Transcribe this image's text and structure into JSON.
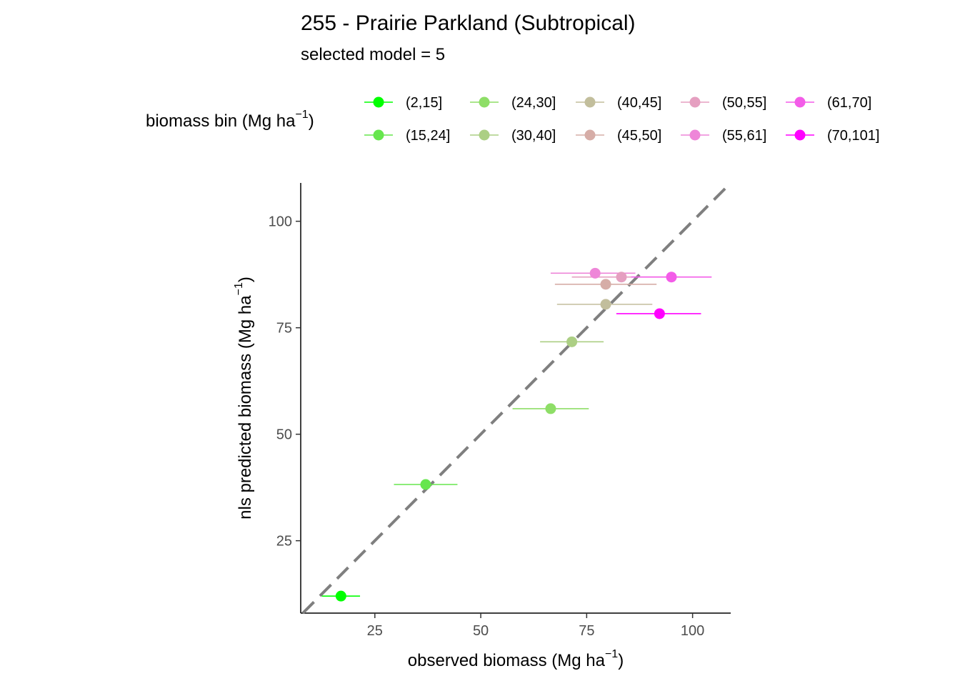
{
  "chart_data": {
    "type": "scatter",
    "title": "255 -  Prairie Parkland (Subtropical)",
    "subtitle": "selected model = 5",
    "legend": {
      "title_main": "biomass bin (Mg ha",
      "title_sup": "−1",
      "title_end": ")",
      "position": "top",
      "entries": [
        {
          "label": "(2,15]",
          "color": "#00FF00"
        },
        {
          "label": "(15,24]",
          "color": "#66E64D"
        },
        {
          "label": "(24,30]",
          "color": "#8EDE67"
        },
        {
          "label": "(30,40]",
          "color": "#ACCF84"
        },
        {
          "label": "(40,45]",
          "color": "#C2BE9C"
        },
        {
          "label": "(45,50]",
          "color": "#D6ADA7"
        },
        {
          "label": "(50,55]",
          "color": "#E59FC0"
        },
        {
          "label": "(55,61]",
          "color": "#EE86D8"
        },
        {
          "label": "(61,70]",
          "color": "#F35CE8"
        },
        {
          "label": "(70,101]",
          "color": "#FF00FF"
        }
      ]
    },
    "xlabel": {
      "main": "observed biomass (Mg ha",
      "sup": "−1",
      "end": ")"
    },
    "ylabel": {
      "main": "nls predicted biomass (Mg ha",
      "sup": "−1",
      "end": ")"
    },
    "xlim": [
      7.5,
      109
    ],
    "ylim": [
      8,
      109
    ],
    "xticks": [
      25,
      50,
      75,
      100
    ],
    "yticks": [
      25,
      50,
      75,
      100
    ],
    "grid": false,
    "reference_line": {
      "type": "y=x",
      "style": "dashed",
      "color": "#7F7F7F"
    },
    "points": [
      {
        "bin": "(2,15]",
        "x": 17,
        "y": 12,
        "xmin": 12.5,
        "xmax": 21.5
      },
      {
        "bin": "(15,24]",
        "x": 37,
        "y": 38.2,
        "xmin": 29.5,
        "xmax": 44.5
      },
      {
        "bin": "(24,30]",
        "x": 66.5,
        "y": 56,
        "xmin": 57.5,
        "xmax": 75.5
      },
      {
        "bin": "(30,40]",
        "x": 71.5,
        "y": 71.7,
        "xmin": 64,
        "xmax": 79
      },
      {
        "bin": "(40,45]",
        "x": 79.5,
        "y": 80.5,
        "xmin": 68,
        "xmax": 90.5
      },
      {
        "bin": "(45,50]",
        "x": 79.5,
        "y": 85.2,
        "xmin": 67.5,
        "xmax": 91.5
      },
      {
        "bin": "(50,55]",
        "x": 83.2,
        "y": 86.9,
        "xmin": 71.5,
        "xmax": 97
      },
      {
        "bin": "(55,61]",
        "x": 77,
        "y": 87.8,
        "xmin": 66.5,
        "xmax": 86.5
      },
      {
        "bin": "(61,70]",
        "x": 95,
        "y": 86.9,
        "xmin": 85.5,
        "xmax": 104.5
      },
      {
        "bin": "(70,101]",
        "x": 92.2,
        "y": 78.3,
        "xmin": 82,
        "xmax": 102
      }
    ]
  }
}
